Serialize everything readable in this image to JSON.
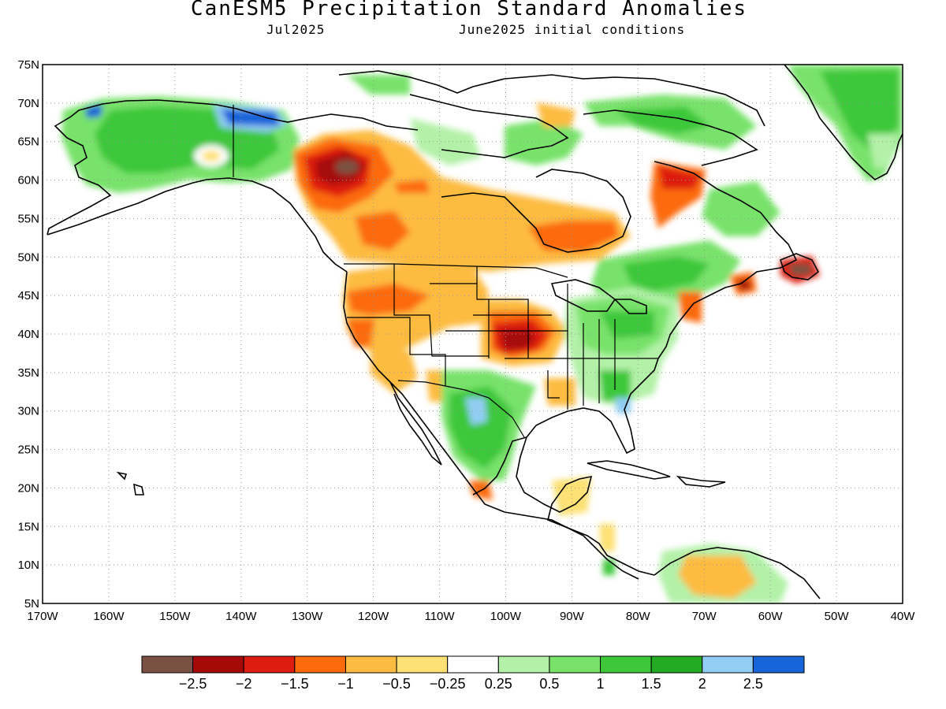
{
  "title": "CanESM5 Precipitation Standard Anomalies",
  "subtitle_left": "Jul2025",
  "subtitle_right": "June2025 initial conditions",
  "map": {
    "lon_range": [
      -170,
      -40
    ],
    "lat_range": [
      5,
      75
    ],
    "lat_ticks": [
      "75N",
      "70N",
      "65N",
      "60N",
      "55N",
      "50N",
      "45N",
      "40N",
      "35N",
      "30N",
      "25N",
      "20N",
      "15N",
      "10N",
      "5N"
    ],
    "lon_ticks": [
      "170W",
      "160W",
      "150W",
      "140W",
      "130W",
      "120W",
      "110W",
      "100W",
      "90W",
      "80W",
      "70W",
      "60W",
      "50W",
      "40W"
    ],
    "grid": "dotted"
  },
  "colorbar": {
    "colors": [
      "#7a5243",
      "#a50a08",
      "#dd1d10",
      "#fc6a0c",
      "#fdbb41",
      "#fde174",
      "#ffffff",
      "#b3f1a8",
      "#78e26a",
      "#3ec73a",
      "#23ab23",
      "#92cdf3",
      "#1864d9"
    ],
    "labels": [
      "−2.5",
      "−2",
      "−1.5",
      "−1",
      "−0.5",
      "−0.25",
      "0.25",
      "0.5",
      "1",
      "1.5",
      "2",
      "2.5"
    ]
  },
  "anomaly_regions": [
    {
      "lon": -124.5,
      "lat": 62,
      "level": "-2.5"
    },
    {
      "lon": -99,
      "lat": 39,
      "level": "-2"
    },
    {
      "lon": -104.5,
      "lat": 30.5,
      "level": "2"
    },
    {
      "lon": -141,
      "lat": 68.5,
      "level": "2.5"
    },
    {
      "lon": -56,
      "lat": 48.5,
      "level": "-2.5"
    }
  ]
}
